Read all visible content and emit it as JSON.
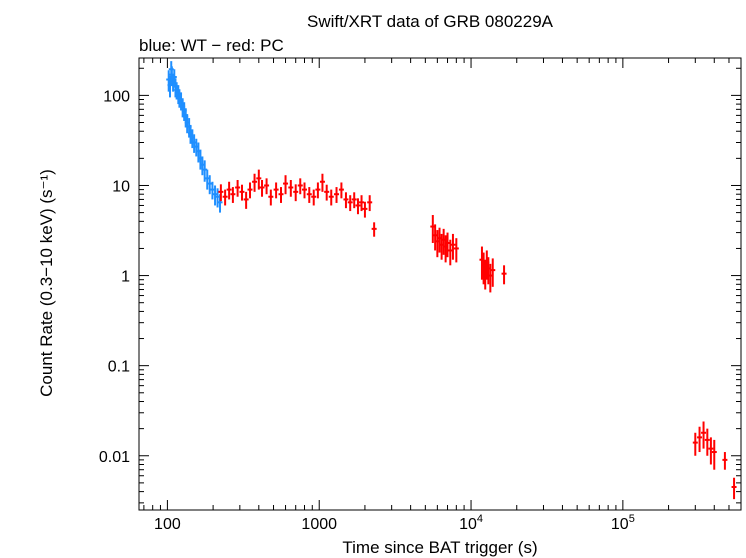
{
  "chart_data": {
    "type": "scatter",
    "title": "Swift/XRT data of GRB 080229A",
    "subtitle": "blue: WT − red: PC",
    "xlabel": "Time since BAT trigger (s)",
    "ylabel": "Count Rate (0.3−10 keV) (s⁻¹)",
    "xscale": "log",
    "yscale": "log",
    "xlim": [
      65,
      600000
    ],
    "ylim": [
      0.0025,
      260
    ],
    "x_ticks": [
      {
        "value": 100,
        "label": "100"
      },
      {
        "value": 1000,
        "label": "1000"
      },
      {
        "value": 10000,
        "label": "10",
        "exp": "4"
      },
      {
        "value": 100000,
        "label": "10",
        "exp": "5"
      }
    ],
    "y_ticks": [
      {
        "value": 100,
        "label": "100"
      },
      {
        "value": 10,
        "label": "10"
      },
      {
        "value": 1,
        "label": "1"
      },
      {
        "value": 0.1,
        "label": "0.1"
      },
      {
        "value": 0.01,
        "label": "0.01"
      }
    ],
    "grid": false,
    "series": [
      {
        "name": "WT",
        "color": "#1f8fff",
        "points": [
          [
            102,
            150,
            40
          ],
          [
            104,
            130,
            35
          ],
          [
            106,
            195,
            45
          ],
          [
            107,
            170,
            40
          ],
          [
            109,
            140,
            30
          ],
          [
            111,
            160,
            35
          ],
          [
            113,
            125,
            30
          ],
          [
            115,
            115,
            25
          ],
          [
            118,
            105,
            25
          ],
          [
            120,
            95,
            22
          ],
          [
            123,
            88,
            20
          ],
          [
            126,
            75,
            18
          ],
          [
            129,
            68,
            16
          ],
          [
            132,
            58,
            14
          ],
          [
            135,
            50,
            12
          ],
          [
            139,
            45,
            11
          ],
          [
            142,
            38,
            9
          ],
          [
            146,
            34,
            8
          ],
          [
            150,
            30,
            7
          ],
          [
            155,
            27,
            6
          ],
          [
            160,
            24,
            6
          ],
          [
            165,
            20,
            5
          ],
          [
            170,
            17,
            4
          ],
          [
            176,
            15,
            4
          ],
          [
            183,
            12,
            3
          ],
          [
            190,
            10.5,
            2.5
          ],
          [
            198,
            9,
            2
          ],
          [
            206,
            8,
            2
          ],
          [
            214,
            7.5,
            1.8
          ],
          [
            222,
            6.5,
            1.5
          ]
        ]
      },
      {
        "name": "PC",
        "color": "#ff0000",
        "points": [
          [
            225,
            8.5,
            1.8
          ],
          [
            240,
            7.5,
            1.5
          ],
          [
            255,
            9,
            2
          ],
          [
            270,
            8,
            1.6
          ],
          [
            290,
            9.5,
            2
          ],
          [
            310,
            8.5,
            1.7
          ],
          [
            330,
            7,
            1.5
          ],
          [
            350,
            9,
            1.8
          ],
          [
            375,
            11,
            2.5
          ],
          [
            400,
            12,
            3
          ],
          [
            420,
            9.5,
            2
          ],
          [
            450,
            10,
            2
          ],
          [
            480,
            7.5,
            1.5
          ],
          [
            520,
            9,
            1.8
          ],
          [
            560,
            8,
            1.6
          ],
          [
            600,
            10.5,
            2.5
          ],
          [
            650,
            9.5,
            2
          ],
          [
            700,
            8.5,
            1.8
          ],
          [
            750,
            10,
            2
          ],
          [
            800,
            9,
            1.8
          ],
          [
            860,
            8,
            1.6
          ],
          [
            920,
            7.5,
            1.5
          ],
          [
            980,
            9,
            1.8
          ],
          [
            1050,
            11,
            2.5
          ],
          [
            1120,
            8.5,
            1.7
          ],
          [
            1200,
            7.5,
            1.5
          ],
          [
            1300,
            8,
            1.6
          ],
          [
            1400,
            9,
            1.8
          ],
          [
            1500,
            7,
            1.4
          ],
          [
            1600,
            6.5,
            1.3
          ],
          [
            1700,
            7,
            1.4
          ],
          [
            1800,
            6,
            1.2
          ],
          [
            1900,
            6.5,
            1.3
          ],
          [
            2000,
            5.5,
            1.1
          ],
          [
            2150,
            6.5,
            1.3
          ],
          [
            2300,
            3.3,
            0.6
          ],
          [
            5600,
            3.5,
            1.2
          ],
          [
            5800,
            2.8,
            0.9
          ],
          [
            6000,
            2.4,
            0.8
          ],
          [
            6200,
            2.6,
            0.8
          ],
          [
            6400,
            2.2,
            0.7
          ],
          [
            6600,
            2.5,
            0.8
          ],
          [
            6800,
            2.1,
            0.7
          ],
          [
            7000,
            2.3,
            0.7
          ],
          [
            7300,
            1.9,
            0.6
          ],
          [
            7600,
            2.2,
            0.7
          ],
          [
            8000,
            2.0,
            0.6
          ],
          [
            11800,
            1.5,
            0.6
          ],
          [
            12100,
            1.3,
            0.5
          ],
          [
            12400,
            1.1,
            0.4
          ],
          [
            12700,
            1.4,
            0.5
          ],
          [
            13000,
            1.2,
            0.4
          ],
          [
            13400,
            1.0,
            0.35
          ],
          [
            13900,
            1.15,
            0.4
          ],
          [
            16500,
            1.05,
            0.25
          ],
          [
            300000,
            0.014,
            0.004
          ],
          [
            320000,
            0.016,
            0.005
          ],
          [
            340000,
            0.018,
            0.006
          ],
          [
            360000,
            0.015,
            0.005
          ],
          [
            380000,
            0.012,
            0.004
          ],
          [
            400000,
            0.011,
            0.004
          ],
          [
            470000,
            0.009,
            0.002
          ],
          [
            540000,
            0.0045,
            0.0012
          ]
        ]
      }
    ]
  }
}
